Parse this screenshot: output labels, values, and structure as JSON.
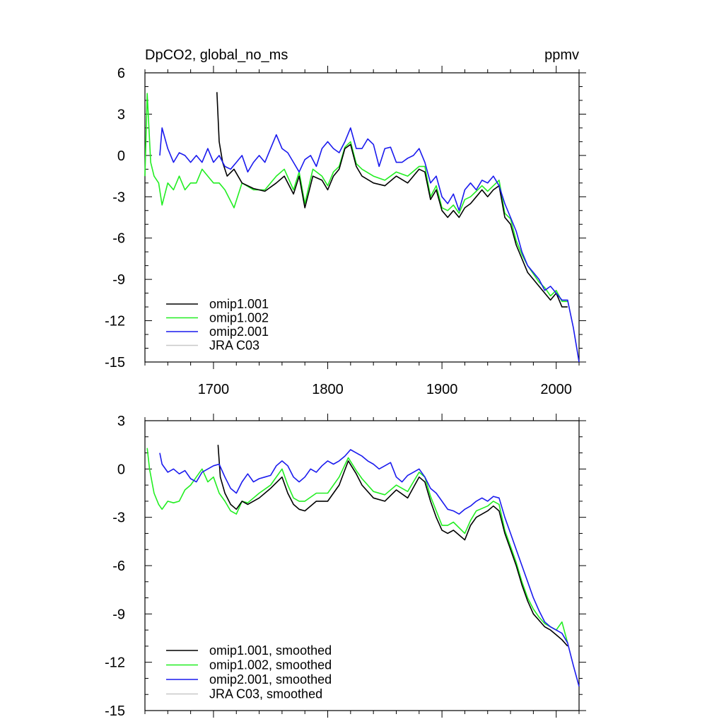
{
  "chart_data": [
    {
      "type": "line",
      "title": "DpCO2, global_no_ms",
      "units": "ppmv",
      "xlabel": "",
      "ylabel": "",
      "xlim": [
        1640,
        2020
      ],
      "ylim": [
        -15,
        6
      ],
      "xticks": [
        1700,
        1800,
        1900,
        2000
      ],
      "xtick_labels": [
        "1700",
        "1800",
        "1900",
        "2000"
      ],
      "yticks": [
        6,
        3,
        0,
        -3,
        -6,
        -9,
        -12,
        -15
      ],
      "ytick_labels": [
        "6",
        "3",
        "0",
        "-3",
        "-6",
        "-9",
        "-12",
        "-15"
      ],
      "grid": false,
      "legend_position": "bottom-left",
      "series": [
        {
          "name": "omip1.001",
          "color": "#000000",
          "x": [
            1703,
            1705,
            1708,
            1712,
            1718,
            1725,
            1735,
            1745,
            1755,
            1762,
            1770,
            1775,
            1780,
            1787,
            1795,
            1800,
            1805,
            1810,
            1815,
            1820,
            1825,
            1830,
            1840,
            1850,
            1860,
            1870,
            1880,
            1885,
            1890,
            1895,
            1900,
            1905,
            1910,
            1915,
            1920,
            1925,
            1930,
            1935,
            1940,
            1945,
            1950,
            1955,
            1960,
            1965,
            1970,
            1975,
            1980,
            1985,
            1990,
            1995,
            2000,
            2005,
            2010
          ],
          "y": [
            4.6,
            1.0,
            -0.5,
            -1.5,
            -1.0,
            -2.0,
            -2.4,
            -2.6,
            -2.0,
            -1.5,
            -2.8,
            -1.5,
            -3.8,
            -1.5,
            -1.8,
            -2.5,
            -1.5,
            -1.0,
            0.5,
            0.8,
            -0.8,
            -1.5,
            -2.0,
            -2.2,
            -1.5,
            -2.0,
            -1.0,
            -1.2,
            -3.2,
            -2.5,
            -4.0,
            -4.5,
            -4.0,
            -4.5,
            -3.8,
            -3.5,
            -3.0,
            -2.5,
            -3.0,
            -2.5,
            -2.2,
            -4.5,
            -5.0,
            -6.5,
            -7.5,
            -8.5,
            -9.0,
            -9.5,
            -10.0,
            -10.5,
            -10.0,
            -11.0,
            -11.0
          ]
        },
        {
          "name": "omip1.002",
          "color": "#22ee22",
          "x": [
            1640,
            1642,
            1645,
            1648,
            1652,
            1655,
            1660,
            1665,
            1670,
            1675,
            1680,
            1685,
            1690,
            1695,
            1700,
            1705,
            1710,
            1718,
            1725,
            1735,
            1745,
            1755,
            1762,
            1770,
            1775,
            1780,
            1787,
            1795,
            1800,
            1805,
            1810,
            1815,
            1820,
            1825,
            1830,
            1840,
            1850,
            1860,
            1870,
            1880,
            1885,
            1890,
            1895,
            1900,
            1905,
            1910,
            1915,
            1920,
            1925,
            1930,
            1935,
            1940,
            1945,
            1950,
            1955,
            1960,
            1965,
            1970,
            1975,
            1980,
            1985,
            1990,
            1995,
            2000,
            2005,
            2010
          ],
          "y": [
            -1.5,
            4.5,
            -0.5,
            -1.5,
            -2.0,
            -3.6,
            -2.0,
            -2.5,
            -1.5,
            -2.5,
            -2.0,
            -2.0,
            -1.0,
            -1.5,
            -2.0,
            -2.0,
            -2.5,
            -3.8,
            -2.0,
            -2.5,
            -2.5,
            -1.5,
            -1.0,
            -2.5,
            -1.2,
            -3.5,
            -1.0,
            -1.5,
            -2.2,
            -1.2,
            -0.8,
            0.6,
            1.0,
            -0.6,
            -1.0,
            -1.5,
            -1.8,
            -1.2,
            -1.5,
            -0.8,
            -0.8,
            -3.0,
            -2.2,
            -3.8,
            -4.0,
            -3.6,
            -4.2,
            -3.2,
            -3.0,
            -2.6,
            -2.2,
            -2.6,
            -2.2,
            -1.8,
            -4.2,
            -4.6,
            -6.2,
            -7.2,
            -8.0,
            -8.6,
            -9.2,
            -9.6,
            -10.2,
            -9.8,
            -10.6,
            -10.6
          ]
        },
        {
          "name": "omip2.001",
          "color": "#1a1aee",
          "x": [
            1653,
            1655,
            1660,
            1665,
            1670,
            1675,
            1680,
            1685,
            1690,
            1695,
            1700,
            1705,
            1710,
            1715,
            1720,
            1725,
            1730,
            1735,
            1740,
            1745,
            1750,
            1755,
            1760,
            1765,
            1770,
            1775,
            1780,
            1785,
            1790,
            1795,
            1800,
            1805,
            1810,
            1815,
            1820,
            1825,
            1830,
            1835,
            1840,
            1845,
            1850,
            1855,
            1860,
            1865,
            1870,
            1875,
            1880,
            1885,
            1890,
            1895,
            1900,
            1905,
            1910,
            1915,
            1920,
            1925,
            1930,
            1935,
            1940,
            1945,
            1950,
            1955,
            1960,
            1965,
            1970,
            1975,
            1980,
            1985,
            1990,
            1995,
            2000,
            2005,
            2010,
            2015,
            2020
          ],
          "y": [
            0.0,
            2.0,
            0.5,
            -0.5,
            0.2,
            0.0,
            -0.5,
            0.0,
            -0.5,
            0.5,
            -0.5,
            0.0,
            -0.8,
            -1.0,
            -0.5,
            0.0,
            -1.2,
            -0.5,
            0.0,
            -0.5,
            0.5,
            1.5,
            0.5,
            0.2,
            -0.5,
            -1.2,
            -0.3,
            0.0,
            -0.8,
            0.5,
            1.0,
            0.5,
            0.2,
            1.0,
            2.0,
            0.5,
            0.5,
            1.2,
            0.8,
            -0.8,
            0.5,
            0.6,
            -0.5,
            -0.5,
            -0.2,
            0.0,
            0.5,
            -0.5,
            -2.0,
            -1.5,
            -3.0,
            -3.5,
            -2.8,
            -4.0,
            -2.5,
            -2.0,
            -2.5,
            -1.8,
            -2.0,
            -1.5,
            -2.2,
            -3.5,
            -4.5,
            -5.5,
            -7.0,
            -8.0,
            -8.5,
            -9.0,
            -9.8,
            -9.5,
            -10.0,
            -10.5,
            -10.5,
            -12.5,
            -15.0
          ]
        },
        {
          "name": "JRA C03",
          "color": "#c8c8c8",
          "x": [],
          "y": []
        }
      ]
    },
    {
      "type": "line",
      "title": "",
      "units": "",
      "xlabel": "",
      "ylabel": "",
      "xlim": [
        1640,
        2020
      ],
      "ylim": [
        -15,
        3
      ],
      "xticks": [
        1700,
        1800,
        1900,
        2000
      ],
      "xtick_labels": [],
      "yticks": [
        3,
        0,
        -3,
        -6,
        -9,
        -12,
        -15
      ],
      "ytick_labels": [
        "3",
        "0",
        "-3",
        "-6",
        "-9",
        "-12",
        "-15"
      ],
      "grid": false,
      "legend_position": "bottom-left",
      "series": [
        {
          "name": "omip1.001, smoothed",
          "color": "#000000",
          "x": [
            1704,
            1706,
            1710,
            1715,
            1720,
            1725,
            1730,
            1740,
            1750,
            1760,
            1765,
            1770,
            1775,
            1780,
            1790,
            1800,
            1810,
            1818,
            1825,
            1830,
            1840,
            1850,
            1860,
            1870,
            1880,
            1885,
            1890,
            1895,
            1900,
            1905,
            1910,
            1920,
            1925,
            1930,
            1940,
            1945,
            1950,
            1955,
            1960,
            1965,
            1970,
            1975,
            1980,
            1985,
            1990,
            1995,
            2000,
            2005,
            2010
          ],
          "y": [
            1.5,
            -0.5,
            -1.5,
            -2.2,
            -2.5,
            -2.0,
            -2.2,
            -1.8,
            -1.2,
            -0.5,
            -1.5,
            -2.2,
            -2.5,
            -2.6,
            -2.0,
            -2.0,
            -1.0,
            0.5,
            -0.3,
            -1.0,
            -1.8,
            -2.0,
            -1.3,
            -1.8,
            -0.5,
            -0.8,
            -2.0,
            -3.0,
            -3.8,
            -4.0,
            -3.8,
            -4.4,
            -3.5,
            -3.0,
            -2.6,
            -2.3,
            -2.6,
            -4.0,
            -5.0,
            -6.0,
            -7.2,
            -8.2,
            -9.0,
            -9.4,
            -9.8,
            -10.0,
            -10.3,
            -10.6,
            -11.0
          ]
        },
        {
          "name": "omip1.002, smoothed",
          "color": "#22ee22",
          "x": [
            1642,
            1644,
            1648,
            1652,
            1655,
            1660,
            1665,
            1670,
            1675,
            1680,
            1685,
            1690,
            1695,
            1700,
            1705,
            1710,
            1715,
            1720,
            1725,
            1730,
            1740,
            1750,
            1760,
            1765,
            1770,
            1775,
            1780,
            1790,
            1800,
            1810,
            1818,
            1825,
            1830,
            1840,
            1850,
            1860,
            1870,
            1880,
            1885,
            1890,
            1895,
            1900,
            1905,
            1910,
            1920,
            1925,
            1930,
            1940,
            1945,
            1950,
            1955,
            1960,
            1965,
            1970,
            1975,
            1980,
            1985,
            1990,
            1995,
            2000,
            2005,
            2010
          ],
          "y": [
            1.3,
            0.0,
            -1.5,
            -2.2,
            -2.5,
            -2.0,
            -2.1,
            -2.0,
            -1.3,
            -1.0,
            -0.5,
            0.0,
            -0.8,
            -0.5,
            -1.5,
            -2.0,
            -2.6,
            -2.8,
            -2.0,
            -2.1,
            -1.5,
            -1.0,
            0.0,
            -1.0,
            -1.8,
            -2.0,
            -2.0,
            -1.5,
            -1.5,
            -0.5,
            0.7,
            -0.1,
            -0.6,
            -1.4,
            -1.6,
            -1.0,
            -1.4,
            -0.2,
            -0.5,
            -1.7,
            -2.6,
            -3.5,
            -3.5,
            -3.3,
            -4.0,
            -3.2,
            -2.6,
            -2.3,
            -2.0,
            -2.2,
            -3.8,
            -4.8,
            -5.8,
            -7.0,
            -8.0,
            -8.7,
            -9.2,
            -9.6,
            -9.8,
            -10.0,
            -9.5,
            -10.8
          ]
        },
        {
          "name": "omip2.001, smoothed",
          "color": "#1a1aee",
          "x": [
            1653,
            1655,
            1660,
            1665,
            1670,
            1675,
            1680,
            1685,
            1690,
            1695,
            1700,
            1705,
            1710,
            1715,
            1720,
            1725,
            1730,
            1735,
            1740,
            1745,
            1750,
            1755,
            1760,
            1765,
            1770,
            1775,
            1780,
            1785,
            1790,
            1795,
            1800,
            1805,
            1810,
            1815,
            1820,
            1825,
            1830,
            1835,
            1840,
            1845,
            1850,
            1855,
            1860,
            1865,
            1870,
            1875,
            1880,
            1885,
            1890,
            1895,
            1900,
            1905,
            1910,
            1915,
            1920,
            1925,
            1930,
            1935,
            1940,
            1945,
            1950,
            1955,
            1960,
            1965,
            1970,
            1975,
            1980,
            1985,
            1990,
            1995,
            2000,
            2005,
            2010,
            2015,
            2020
          ],
          "y": [
            1.0,
            0.3,
            -0.2,
            0.0,
            -0.3,
            -0.1,
            -0.6,
            -0.8,
            -0.2,
            0.0,
            0.2,
            0.3,
            -0.5,
            -1.2,
            -1.5,
            -0.8,
            -0.3,
            -0.8,
            -0.6,
            -0.5,
            -0.4,
            0.2,
            0.5,
            0.2,
            -0.5,
            -0.8,
            -0.5,
            0.0,
            -0.2,
            0.2,
            0.5,
            0.3,
            0.5,
            0.8,
            1.2,
            1.0,
            0.8,
            0.5,
            0.3,
            0.0,
            0.2,
            0.4,
            -0.5,
            -0.8,
            -0.4,
            -0.2,
            0.0,
            -0.5,
            -1.2,
            -1.5,
            -2.0,
            -2.5,
            -2.6,
            -2.8,
            -2.5,
            -2.3,
            -2.0,
            -1.8,
            -2.0,
            -1.7,
            -1.8,
            -3.0,
            -4.0,
            -5.0,
            -6.0,
            -7.0,
            -8.0,
            -8.8,
            -9.5,
            -9.8,
            -10.0,
            -10.2,
            -10.8,
            -12.2,
            -13.5
          ]
        },
        {
          "name": "JRA C03, smoothed",
          "color": "#c8c8c8",
          "x": [],
          "y": []
        }
      ]
    }
  ]
}
